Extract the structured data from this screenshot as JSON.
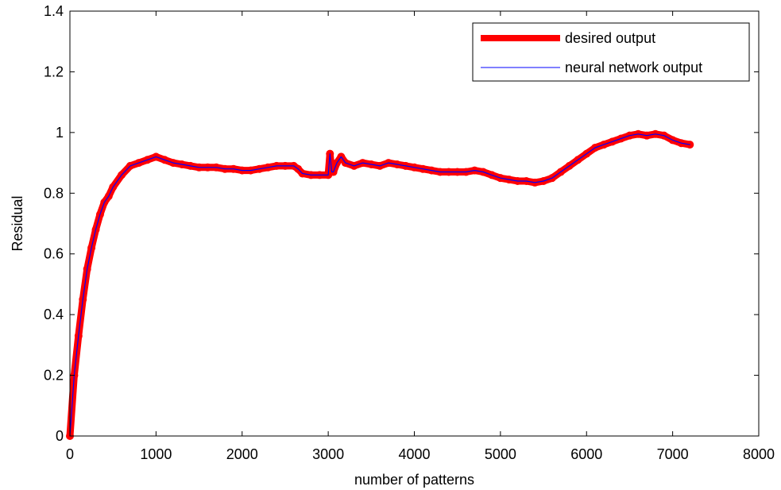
{
  "chart_data": {
    "type": "line",
    "title": "",
    "xlabel": "number of patterns",
    "ylabel": "Residual",
    "xlim": [
      0,
      8000
    ],
    "ylim": [
      0,
      1.4
    ],
    "xticks": [
      0,
      1000,
      2000,
      3000,
      4000,
      5000,
      6000,
      7000,
      8000
    ],
    "xtick_labels": [
      "0",
      "1000",
      "2000",
      "3000",
      "4000",
      "5000",
      "6000",
      "7000",
      "8000"
    ],
    "yticks": [
      0,
      0.2,
      0.4,
      0.6,
      0.8,
      1.0,
      1.2,
      1.4
    ],
    "ytick_labels": [
      "0",
      "0.2",
      "0.4",
      "0.6",
      "0.8",
      "1",
      "1.2",
      "1.4"
    ],
    "grid": false,
    "legend_position": "top-right",
    "series": [
      {
        "name": "desired output",
        "color": "#ff0000",
        "style": "thick-line-with-markers",
        "x": [
          0,
          50,
          100,
          150,
          200,
          250,
          300,
          350,
          400,
          450,
          500,
          600,
          700,
          800,
          900,
          1000,
          1100,
          1200,
          1300,
          1400,
          1500,
          1600,
          1700,
          1800,
          1900,
          2000,
          2100,
          2200,
          2300,
          2400,
          2500,
          2600,
          2650,
          2700,
          2800,
          2900,
          3000,
          3020,
          3040,
          3060,
          3100,
          3150,
          3200,
          3300,
          3400,
          3500,
          3600,
          3700,
          3800,
          3900,
          4000,
          4100,
          4200,
          4300,
          4400,
          4500,
          4600,
          4700,
          4800,
          4900,
          5000,
          5100,
          5200,
          5300,
          5400,
          5500,
          5600,
          5700,
          5800,
          5900,
          6000,
          6100,
          6200,
          6300,
          6400,
          6500,
          6600,
          6700,
          6800,
          6900,
          7000,
          7100,
          7200
        ],
        "y": [
          0.0,
          0.2,
          0.33,
          0.45,
          0.55,
          0.62,
          0.68,
          0.73,
          0.77,
          0.79,
          0.82,
          0.86,
          0.89,
          0.9,
          0.91,
          0.92,
          0.91,
          0.9,
          0.895,
          0.89,
          0.885,
          0.885,
          0.885,
          0.88,
          0.88,
          0.875,
          0.875,
          0.88,
          0.885,
          0.89,
          0.89,
          0.89,
          0.88,
          0.865,
          0.86,
          0.86,
          0.86,
          0.93,
          0.87,
          0.87,
          0.9,
          0.92,
          0.9,
          0.89,
          0.9,
          0.895,
          0.89,
          0.9,
          0.895,
          0.89,
          0.885,
          0.88,
          0.875,
          0.87,
          0.87,
          0.87,
          0.87,
          0.875,
          0.87,
          0.86,
          0.85,
          0.845,
          0.84,
          0.84,
          0.835,
          0.84,
          0.85,
          0.87,
          0.89,
          0.91,
          0.93,
          0.95,
          0.96,
          0.97,
          0.98,
          0.99,
          0.995,
          0.99,
          0.995,
          0.99,
          0.975,
          0.965,
          0.96
        ]
      },
      {
        "name": "neural network output",
        "color": "#0000ff",
        "style": "thin-line",
        "x": [
          0,
          50,
          100,
          150,
          200,
          250,
          300,
          350,
          400,
          450,
          500,
          600,
          700,
          800,
          900,
          1000,
          1100,
          1200,
          1300,
          1400,
          1500,
          1600,
          1700,
          1800,
          1900,
          2000,
          2100,
          2200,
          2300,
          2400,
          2500,
          2600,
          2650,
          2700,
          2800,
          2900,
          3000,
          3020,
          3040,
          3060,
          3100,
          3150,
          3200,
          3300,
          3400,
          3500,
          3600,
          3700,
          3800,
          3900,
          4000,
          4100,
          4200,
          4300,
          4400,
          4500,
          4600,
          4700,
          4800,
          4900,
          5000,
          5100,
          5200,
          5300,
          5400,
          5500,
          5600,
          5700,
          5800,
          5900,
          6000,
          6100,
          6200,
          6300,
          6400,
          6500,
          6600,
          6700,
          6800,
          6900,
          7000,
          7100,
          7200
        ],
        "y": [
          0.0,
          0.2,
          0.33,
          0.45,
          0.55,
          0.62,
          0.68,
          0.73,
          0.77,
          0.79,
          0.82,
          0.86,
          0.89,
          0.9,
          0.91,
          0.92,
          0.91,
          0.9,
          0.895,
          0.89,
          0.885,
          0.885,
          0.885,
          0.88,
          0.88,
          0.875,
          0.875,
          0.88,
          0.885,
          0.89,
          0.89,
          0.89,
          0.88,
          0.865,
          0.86,
          0.86,
          0.86,
          0.93,
          0.87,
          0.87,
          0.9,
          0.92,
          0.9,
          0.89,
          0.9,
          0.895,
          0.89,
          0.9,
          0.895,
          0.89,
          0.885,
          0.88,
          0.875,
          0.87,
          0.87,
          0.87,
          0.87,
          0.875,
          0.87,
          0.86,
          0.85,
          0.845,
          0.84,
          0.84,
          0.835,
          0.84,
          0.85,
          0.87,
          0.89,
          0.91,
          0.93,
          0.95,
          0.96,
          0.97,
          0.98,
          0.99,
          0.995,
          0.99,
          0.995,
          0.99,
          0.975,
          0.965,
          0.96
        ]
      }
    ]
  }
}
